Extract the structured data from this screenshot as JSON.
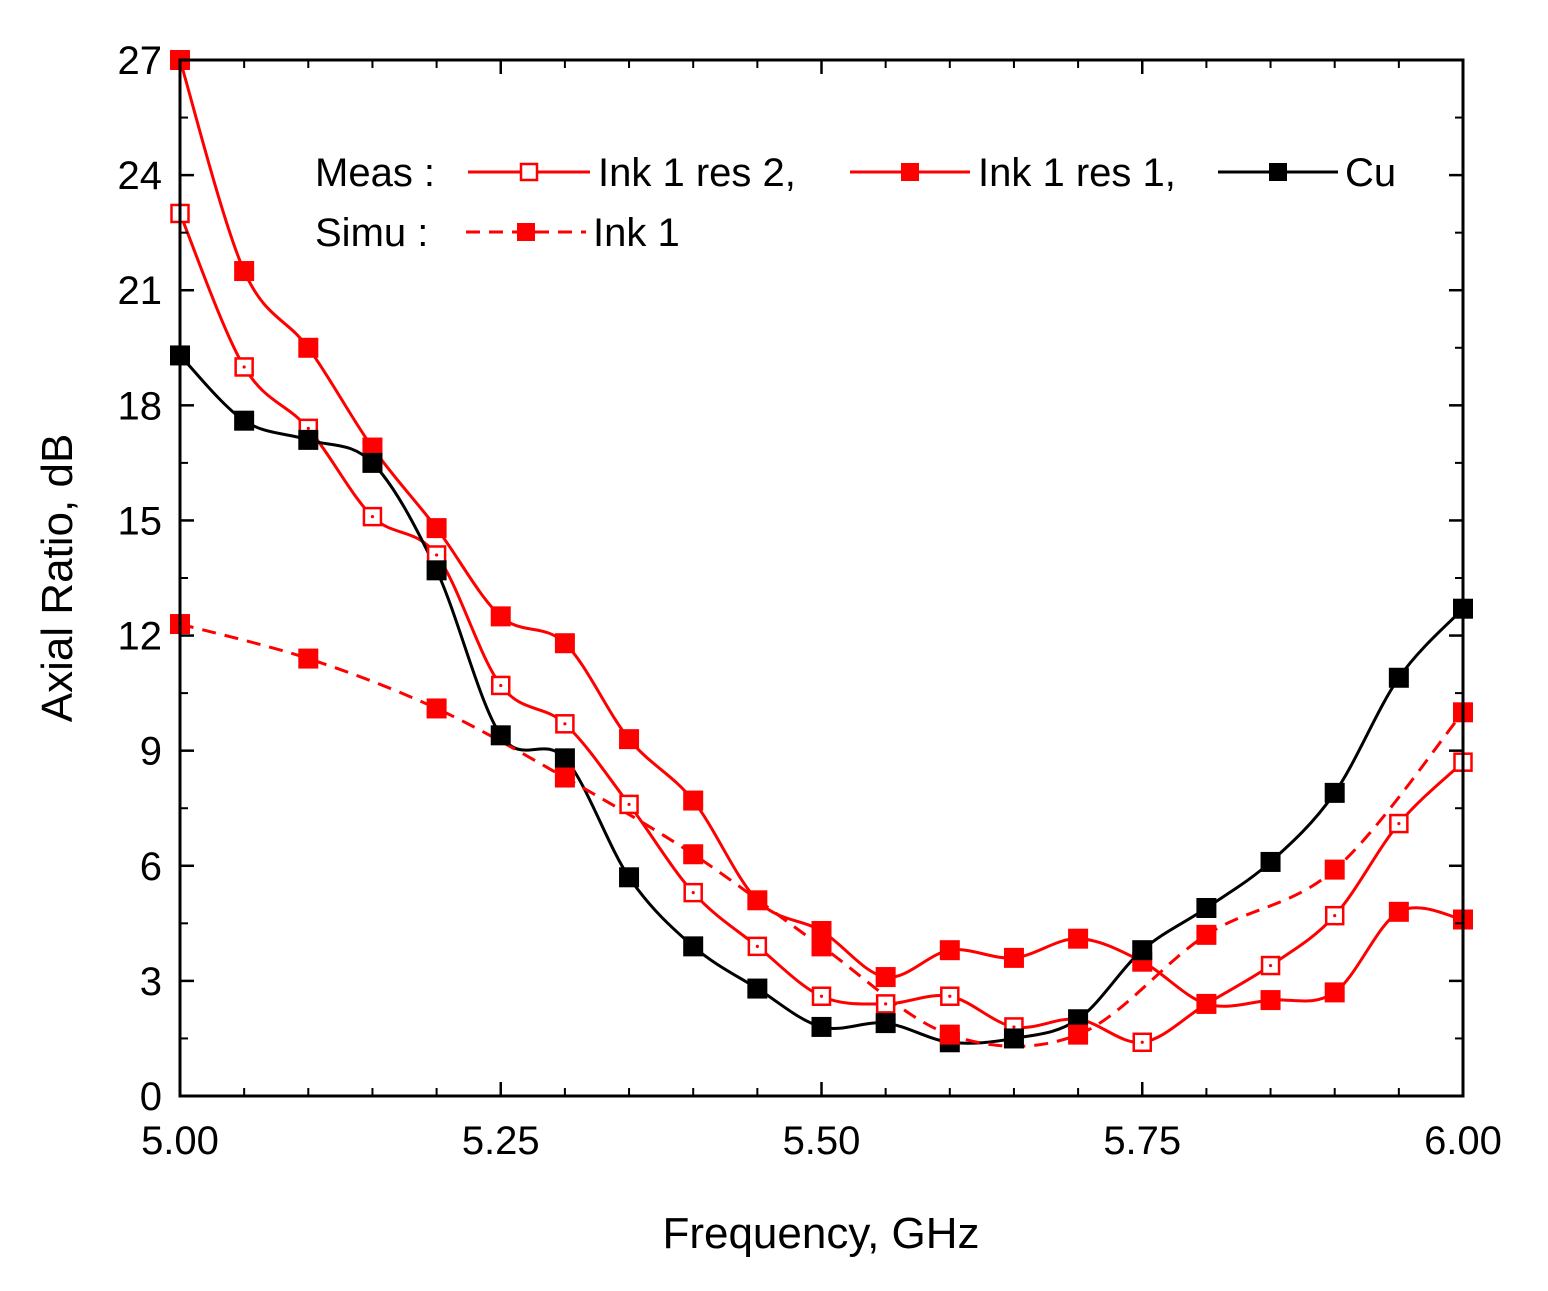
{
  "chart_data": {
    "type": "line",
    "title": "",
    "xlabel": "Frequency, GHz",
    "ylabel": "Axial Ratio, dB",
    "xlim": [
      5.0,
      6.0
    ],
    "ylim": [
      0,
      27
    ],
    "x_ticks": [
      "5.00",
      "5.25",
      "5.50",
      "5.75",
      "6.00"
    ],
    "y_ticks": [
      "0",
      "3",
      "6",
      "9",
      "12",
      "15",
      "18",
      "21",
      "24",
      "27"
    ],
    "legend": {
      "meas_label": "Meas :",
      "simu_label": "Simu :",
      "placement": "top"
    },
    "series": [
      {
        "name": "Ink 1 res 2,",
        "group": "Meas",
        "color": "#ff0000",
        "marker": "open-square",
        "dashed": false,
        "x": [
          5.0,
          5.05,
          5.1,
          5.15,
          5.2,
          5.25,
          5.3,
          5.35,
          5.4,
          5.45,
          5.5,
          5.55,
          5.6,
          5.65,
          5.7,
          5.75,
          5.8,
          5.85,
          5.9,
          5.95,
          6.0
        ],
        "values": [
          23.0,
          19.0,
          17.4,
          15.1,
          14.1,
          10.7,
          9.7,
          7.6,
          5.3,
          3.9,
          2.6,
          2.4,
          2.6,
          1.8,
          2.0,
          1.4,
          2.4,
          3.4,
          4.7,
          7.1,
          8.7
        ]
      },
      {
        "name": "Ink 1 res 1,",
        "group": "Meas",
        "color": "#ff0000",
        "marker": "filled-square",
        "dashed": false,
        "x": [
          5.0,
          5.05,
          5.1,
          5.15,
          5.2,
          5.25,
          5.3,
          5.35,
          5.4,
          5.45,
          5.5,
          5.55,
          5.6,
          5.65,
          5.7,
          5.75,
          5.8,
          5.85,
          5.9,
          5.95,
          6.0
        ],
        "values": [
          27.0,
          21.5,
          19.5,
          16.9,
          14.8,
          12.5,
          11.8,
          9.3,
          7.7,
          5.1,
          4.3,
          3.1,
          3.8,
          3.6,
          4.1,
          3.5,
          2.4,
          2.5,
          2.7,
          4.8,
          4.6
        ]
      },
      {
        "name": "Cu",
        "group": "Meas",
        "color": "#000000",
        "marker": "filled-square",
        "dashed": false,
        "x": [
          5.0,
          5.05,
          5.1,
          5.15,
          5.2,
          5.25,
          5.3,
          5.35,
          5.4,
          5.45,
          5.5,
          5.55,
          5.6,
          5.65,
          5.7,
          5.75,
          5.8,
          5.85,
          5.9,
          5.95,
          6.0
        ],
        "values": [
          19.3,
          17.6,
          17.1,
          16.5,
          13.7,
          9.4,
          8.8,
          5.7,
          3.9,
          2.8,
          1.8,
          1.9,
          1.4,
          1.5,
          2.0,
          3.8,
          4.9,
          6.1,
          7.9,
          10.9,
          12.7
        ]
      },
      {
        "name": "Ink 1",
        "group": "Simu",
        "color": "#ff0000",
        "marker": "filled-square",
        "dashed": true,
        "x": [
          5.0,
          5.1,
          5.2,
          5.3,
          5.4,
          5.5,
          5.6,
          5.7,
          5.8,
          5.9,
          6.0
        ],
        "values": [
          12.3,
          11.4,
          10.1,
          8.3,
          6.3,
          3.9,
          1.6,
          1.6,
          4.2,
          5.9,
          10.0
        ]
      }
    ]
  }
}
